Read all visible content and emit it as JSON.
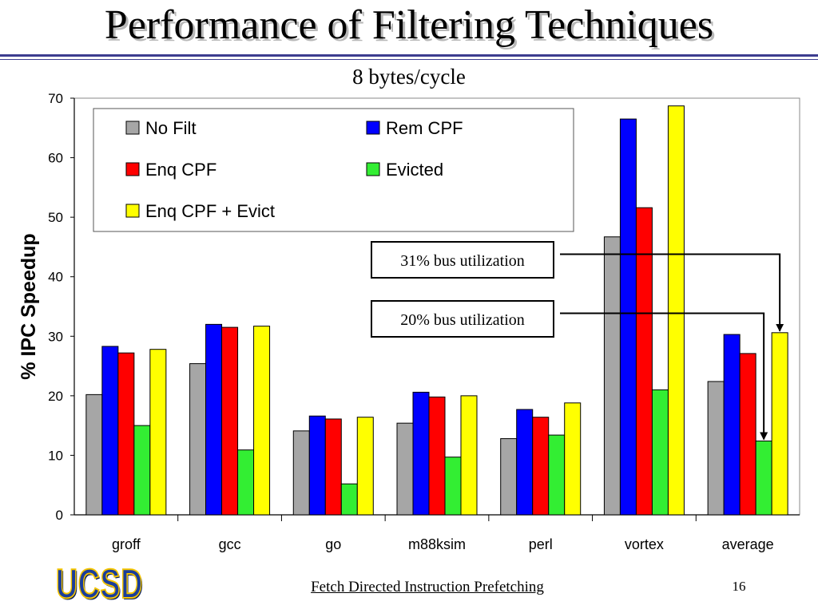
{
  "slide": {
    "title": "Performance of Filtering Techniques",
    "subtitle": "8 bytes/cycle",
    "footer": "Fetch Directed Instruction Prefetching",
    "page_number": "16",
    "logo_text": "UCSD"
  },
  "annotations": [
    {
      "text": "31% bus utilization",
      "target_series": "Enq CPF + Evict",
      "target_category": "average"
    },
    {
      "text": "20% bus utilization",
      "target_series": "Evicted",
      "target_category": "average"
    }
  ],
  "chart_data": {
    "type": "bar",
    "title": "",
    "xlabel": "",
    "ylabel": "% IPC Speedup",
    "ylim": [
      0,
      70
    ],
    "yticks": [
      0,
      10,
      20,
      30,
      40,
      50,
      60,
      70
    ],
    "grid": true,
    "legend_position": "top-left",
    "categories": [
      "groff",
      "gcc",
      "go",
      "m88ksim",
      "perl",
      "vortex",
      "average"
    ],
    "series": [
      {
        "name": "No Filt",
        "color": "#a6a6a6",
        "values": [
          20.2,
          25.4,
          14.1,
          15.4,
          12.8,
          46.7,
          22.4
        ]
      },
      {
        "name": "Rem CPF",
        "color": "#0000ff",
        "values": [
          28.3,
          32.0,
          16.6,
          20.6,
          17.7,
          66.5,
          30.3
        ]
      },
      {
        "name": "Enq CPF",
        "color": "#ff0000",
        "values": [
          27.2,
          31.5,
          16.1,
          19.8,
          16.4,
          51.6,
          27.1
        ]
      },
      {
        "name": "Evicted",
        "color": "#33ee33",
        "values": [
          15.0,
          10.9,
          5.2,
          9.7,
          13.4,
          21.0,
          12.4
        ]
      },
      {
        "name": "Enq CPF + Evict",
        "color": "#ffff00",
        "values": [
          27.8,
          31.7,
          16.4,
          20.0,
          18.8,
          68.7,
          30.6
        ]
      }
    ]
  }
}
